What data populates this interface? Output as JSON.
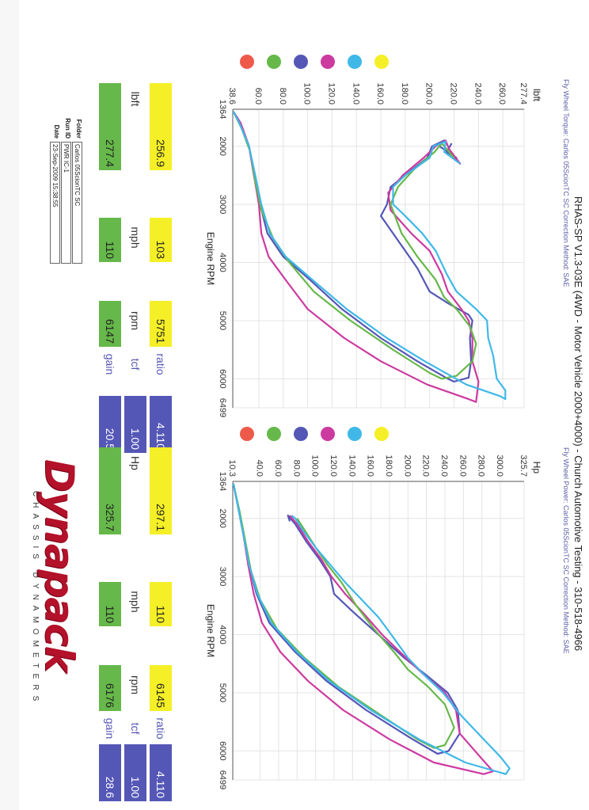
{
  "title": "RHAS-SP V1.3-03E  (4WD - Motor Vehicle 2000+4000) - Church Automotive Testing - 310-518-4966",
  "legend_colors": [
    "#ee5a4a",
    "#66b84a",
    "#5557b6",
    "#cc3aa0",
    "#3fb8e8",
    "#f5ef27"
  ],
  "chart_data": [
    {
      "type": "line",
      "subtitle": "Fly Wheel Torque: Carlos 05ScionTC SC     Correction Method: SAE",
      "ylabel": "lbft",
      "xlabel": "Engine RPM",
      "xlim": [
        1364,
        6499
      ],
      "ylim": [
        38.6,
        277.4
      ],
      "x_ticks": [
        "1364",
        "2000",
        "3000",
        "4000",
        "5000",
        "6000",
        "6499"
      ],
      "y_ticks": [
        "38.6",
        "60.0",
        "80.0",
        "100.0",
        "120.0",
        "140.0",
        "160.0",
        "180.0",
        "200.0",
        "220.0",
        "240.0",
        "260.0",
        "277.4"
      ],
      "series": [
        {
          "color": "#5557b6",
          "points": [
            [
              1400,
              39
            ],
            [
              1600,
              45
            ],
            [
              2000,
              52
            ],
            [
              2500,
              56
            ],
            [
              3000,
              61
            ],
            [
              3500,
              67
            ],
            [
              3900,
              80
            ],
            [
              4300,
              102
            ],
            [
              4800,
              128
            ],
            [
              5300,
              160
            ],
            [
              5700,
              190
            ],
            [
              6000,
              215
            ],
            [
              6050,
              220
            ],
            [
              5980,
              232
            ],
            [
              5700,
              234
            ],
            [
              5300,
              233
            ],
            [
              5000,
              235
            ],
            [
              4900,
              232
            ],
            [
              4700,
              215
            ],
            [
              4500,
              200
            ],
            [
              4100,
              190
            ],
            [
              3800,
              180
            ],
            [
              3500,
              170
            ],
            [
              3200,
              160
            ],
            [
              3000,
              165
            ],
            [
              2700,
              168
            ],
            [
              2500,
              180
            ],
            [
              2200,
              198
            ],
            [
              2000,
              202
            ],
            [
              1900,
              212
            ],
            [
              2000,
              208
            ],
            [
              2200,
              222
            ],
            [
              2100,
              214
            ],
            [
              1950,
              218
            ]
          ]
        },
        {
          "color": "#cc3aa0",
          "points": [
            [
              1400,
              39
            ],
            [
              1600,
              45
            ],
            [
              2000,
              52
            ],
            [
              2500,
              56
            ],
            [
              3000,
              60
            ],
            [
              3500,
              62
            ],
            [
              3900,
              68
            ],
            [
              4300,
              82
            ],
            [
              4800,
              100
            ],
            [
              5300,
              130
            ],
            [
              5700,
              160
            ],
            [
              6100,
              198
            ],
            [
              6350,
              232
            ],
            [
              6400,
              238
            ],
            [
              6050,
              240
            ],
            [
              5700,
              235
            ],
            [
              5300,
              235
            ],
            [
              5000,
              232
            ],
            [
              4800,
              226
            ],
            [
              4500,
              215
            ],
            [
              4200,
              210
            ],
            [
              3800,
              200
            ],
            [
              3500,
              185
            ],
            [
              3100,
              168
            ],
            [
              2800,
              166
            ],
            [
              2500,
              178
            ],
            [
              2200,
              195
            ],
            [
              2000,
              205
            ],
            [
              1900,
              213
            ],
            [
              2050,
              216
            ],
            [
              2300,
              225
            ],
            [
              2100,
              216
            ]
          ]
        },
        {
          "color": "#66b84a",
          "points": [
            [
              1400,
              39
            ],
            [
              1700,
              46
            ],
            [
              2100,
              53
            ],
            [
              2600,
              57
            ],
            [
              3100,
              62
            ],
            [
              3600,
              72
            ],
            [
              4000,
              85
            ],
            [
              4500,
              105
            ],
            [
              5000,
              135
            ],
            [
              5500,
              170
            ],
            [
              5900,
              200
            ],
            [
              6000,
              210
            ],
            [
              5950,
              222
            ],
            [
              5700,
              235
            ],
            [
              5400,
              238
            ],
            [
              5100,
              233
            ],
            [
              4800,
              222
            ],
            [
              4600,
              212
            ],
            [
              4300,
              205
            ],
            [
              3900,
              190
            ],
            [
              3500,
              177
            ],
            [
              3000,
              168
            ],
            [
              2700,
              174
            ],
            [
              2400,
              187
            ],
            [
              2100,
              204
            ],
            [
              1950,
              210
            ],
            [
              2050,
              214
            ],
            [
              2200,
              220
            ]
          ]
        },
        {
          "color": "#3fb8e8",
          "points": [
            [
              1400,
              39
            ],
            [
              1600,
              44
            ],
            [
              2000,
              52
            ],
            [
              2500,
              57
            ],
            [
              3000,
              62
            ],
            [
              3500,
              69
            ],
            [
              3900,
              82
            ],
            [
              4300,
              104
            ],
            [
              4800,
              132
            ],
            [
              5300,
              165
            ],
            [
              5700,
              196
            ],
            [
              6100,
              230
            ],
            [
              6300,
              258
            ],
            [
              6350,
              262
            ],
            [
              6200,
              262
            ],
            [
              6000,
              255
            ],
            [
              5600,
              252
            ],
            [
              5300,
              248
            ],
            [
              5000,
              247
            ],
            [
              4800,
              238
            ],
            [
              4500,
              222
            ],
            [
              4200,
              214
            ],
            [
              3800,
              205
            ],
            [
              3500,
              194
            ],
            [
              3200,
              180
            ],
            [
              3000,
              170
            ],
            [
              2700,
              170
            ],
            [
              2500,
              180
            ],
            [
              2200,
              200
            ],
            [
              2000,
              203
            ],
            [
              1920,
              213
            ],
            [
              2100,
              212
            ],
            [
              2300,
              225
            ]
          ]
        }
      ]
    },
    {
      "type": "line",
      "subtitle": "Fly Wheel Power: Carlos 05ScionTC SC     Correction Method: SAE",
      "ylabel": "Hp",
      "xlabel": "Engine RPM",
      "xlim": [
        1364,
        6499
      ],
      "ylim": [
        10.3,
        325.7
      ],
      "x_ticks": [
        "1364",
        "2000",
        "3000",
        "4000",
        "5000",
        "6000",
        "6499"
      ],
      "y_ticks": [
        "10.3",
        "40.0",
        "60.0",
        "80.0",
        "100.0",
        "120.0",
        "140.0",
        "160.0",
        "180.0",
        "200.0",
        "220.0",
        "240.0",
        "260.0",
        "280.0",
        "300.0",
        "325.7"
      ],
      "series": [
        {
          "color": "#5557b6",
          "points": [
            [
              1400,
              11
            ],
            [
              1800,
              16
            ],
            [
              2300,
              22
            ],
            [
              2800,
              28
            ],
            [
              3300,
              36
            ],
            [
              3800,
              50
            ],
            [
              4300,
              78
            ],
            [
              4800,
              112
            ],
            [
              5300,
              155
            ],
            [
              5800,
              205
            ],
            [
              6050,
              232
            ],
            [
              6000,
              244
            ],
            [
              5700,
              256
            ],
            [
              5300,
              254
            ],
            [
              5000,
              243
            ],
            [
              4700,
              220
            ],
            [
              4400,
              196
            ],
            [
              4000,
              168
            ],
            [
              3600,
              140
            ],
            [
              3300,
              120
            ],
            [
              3000,
              116
            ],
            [
              2700,
              104
            ],
            [
              2400,
              90
            ],
            [
              2100,
              78
            ],
            [
              1950,
              70
            ],
            [
              2050,
              72
            ]
          ]
        },
        {
          "color": "#cc3aa0",
          "points": [
            [
              1400,
              11
            ],
            [
              1800,
              16
            ],
            [
              2300,
              22
            ],
            [
              2800,
              27
            ],
            [
              3300,
              33
            ],
            [
              3800,
              42
            ],
            [
              4300,
              62
            ],
            [
              4800,
              92
            ],
            [
              5300,
              130
            ],
            [
              5800,
              180
            ],
            [
              6200,
              228
            ],
            [
              6400,
              282
            ],
            [
              6350,
              292
            ],
            [
              6100,
              278
            ],
            [
              5700,
              256
            ],
            [
              5300,
              252
            ],
            [
              5000,
              240
            ],
            [
              4700,
              218
            ],
            [
              4400,
              198
            ],
            [
              4000,
              172
            ],
            [
              3600,
              150
            ],
            [
              3300,
              132
            ],
            [
              3000,
              117
            ],
            [
              2700,
              106
            ],
            [
              2400,
              92
            ],
            [
              2100,
              80
            ],
            [
              1950,
              72
            ]
          ]
        },
        {
          "color": "#66b84a",
          "points": [
            [
              1400,
              11
            ],
            [
              1900,
              18
            ],
            [
              2400,
              24
            ],
            [
              2900,
              30
            ],
            [
              3400,
              40
            ],
            [
              3900,
              58
            ],
            [
              4400,
              88
            ],
            [
              4900,
              125
            ],
            [
              5400,
              172
            ],
            [
              5800,
              210
            ],
            [
              5950,
              228
            ],
            [
              5900,
              240
            ],
            [
              5600,
              250
            ],
            [
              5200,
              240
            ],
            [
              4900,
              222
            ],
            [
              4600,
              200
            ],
            [
              4300,
              185
            ],
            [
              3900,
              163
            ],
            [
              3500,
              144
            ],
            [
              3100,
              128
            ],
            [
              2800,
              113
            ],
            [
              2500,
              100
            ],
            [
              2200,
              88
            ],
            [
              2000,
              80
            ]
          ]
        },
        {
          "color": "#3fb8e8",
          "points": [
            [
              1400,
              11
            ],
            [
              1800,
              16
            ],
            [
              2300,
              22
            ],
            [
              2800,
              28
            ],
            [
              3300,
              37
            ],
            [
              3800,
              52
            ],
            [
              4300,
              80
            ],
            [
              4800,
              115
            ],
            [
              5300,
              160
            ],
            [
              5800,
              212
            ],
            [
              6200,
              262
            ],
            [
              6400,
              306
            ],
            [
              6300,
              310
            ],
            [
              6100,
              300
            ],
            [
              5800,
              282
            ],
            [
              5400,
              258
            ],
            [
              5000,
              238
            ],
            [
              4700,
              218
            ],
            [
              4400,
              200
            ],
            [
              4000,
              182
            ],
            [
              3700,
              168
            ],
            [
              3400,
              150
            ],
            [
              3100,
              132
            ],
            [
              2800,
              116
            ],
            [
              2500,
              100
            ],
            [
              2200,
              86
            ],
            [
              2000,
              78
            ],
            [
              1950,
              74
            ]
          ]
        }
      ]
    }
  ],
  "stats_left": {
    "labels": [
      "lbft",
      "mph",
      "rpm"
    ],
    "row1": [
      "256.9",
      "103",
      "5751"
    ],
    "row2": [
      "277.4",
      "110",
      "6147"
    ],
    "side_labels": [
      "ratio",
      "tcf",
      "gain"
    ],
    "side_values": [
      "4.110",
      "1.00",
      "20.5"
    ]
  },
  "stats_right": {
    "labels": [
      "Hp",
      "mph",
      "rpm"
    ],
    "row1": [
      "297.1",
      "110",
      "6145"
    ],
    "row2": [
      "325.7",
      "110",
      "6176"
    ],
    "side_labels": [
      "ratio",
      "tcf",
      "gain"
    ],
    "side_values": [
      "4.110",
      "1.00",
      "28.6"
    ]
  },
  "info": {
    "folder_key": "Folder",
    "folder_val": "Carlos 05ScionTC SC",
    "runid_key": "Run ID",
    "runid_val": "PWR IC-1",
    "date_key": "Date",
    "date_val": "23-Sep-2009  15:38:55"
  },
  "logo": {
    "brand": "Dynapack",
    "tagline": "CHASSIS DYNAMOMETERS"
  }
}
